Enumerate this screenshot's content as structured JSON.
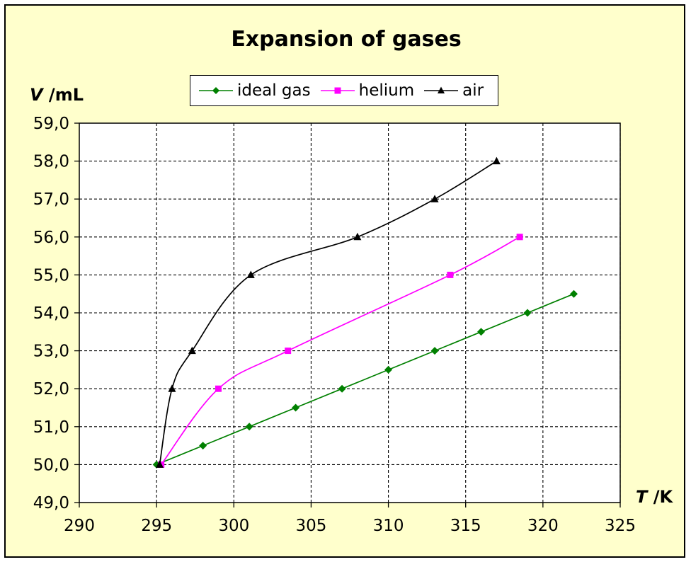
{
  "chart_data": {
    "type": "line",
    "title": "Expansion of gases",
    "xlabel_symbol": "T",
    "xlabel_unit": " /K",
    "ylabel_symbol": "V",
    "ylabel_unit": " /mL",
    "xlim": [
      290,
      325
    ],
    "ylim": [
      49.0,
      59.0
    ],
    "x_ticks": [
      290,
      295,
      300,
      305,
      310,
      315,
      320,
      325
    ],
    "y_ticks": [
      "49,0",
      "50,0",
      "51,0",
      "52,0",
      "53,0",
      "54,0",
      "55,0",
      "56,0",
      "57,0",
      "58,0",
      "59,0"
    ],
    "grid": true,
    "legend_position": "top-center",
    "series": [
      {
        "name": "ideal gas",
        "color": "#008000",
        "marker": "diamond",
        "smooth": false,
        "points": [
          [
            295,
            50.0
          ],
          [
            298,
            50.5
          ],
          [
            301,
            51.0
          ],
          [
            304,
            51.5
          ],
          [
            307,
            52.0
          ],
          [
            310,
            52.5
          ],
          [
            313,
            53.0
          ],
          [
            316,
            53.5
          ],
          [
            319,
            54.0
          ],
          [
            322,
            54.5
          ]
        ]
      },
      {
        "name": "helium",
        "color": "#ff00ff",
        "marker": "square",
        "smooth": true,
        "points": [
          [
            295.3,
            50.0
          ],
          [
            299,
            52.0
          ],
          [
            303.5,
            53.0
          ],
          [
            314,
            55.0
          ],
          [
            318.5,
            56.0
          ]
        ]
      },
      {
        "name": "air",
        "color": "#000000",
        "marker": "triangle",
        "smooth": true,
        "points": [
          [
            295.2,
            50.0
          ],
          [
            296,
            52.0
          ],
          [
            297.3,
            53.0
          ],
          [
            301.1,
            55.0
          ],
          [
            308,
            56.0
          ],
          [
            313,
            57.0
          ],
          [
            317,
            58.0
          ]
        ]
      }
    ]
  }
}
